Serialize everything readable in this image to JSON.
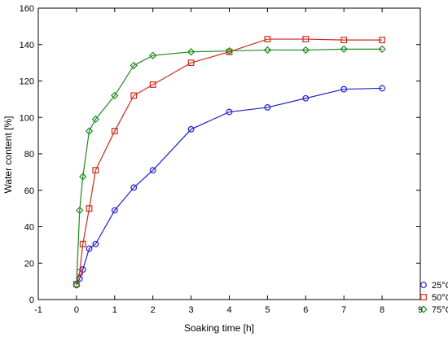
{
  "chart_data": {
    "type": "line",
    "title": "",
    "xlabel": "Soaking time [h]",
    "ylabel": "Water content [%]",
    "xlim": [
      -1,
      9
    ],
    "ylim": [
      0,
      160
    ],
    "xticks": [
      -1,
      0,
      1,
      2,
      3,
      4,
      5,
      6,
      7,
      8,
      9
    ],
    "yticks": [
      0,
      20,
      40,
      60,
      80,
      100,
      120,
      140,
      160
    ],
    "grid": false,
    "legend_position": "bottom-right",
    "series": [
      {
        "name": "25°C",
        "color": "#1f1fd0",
        "marker": "circle",
        "x": [
          0,
          0.083,
          0.167,
          0.333,
          0.5,
          1,
          1.5,
          2,
          3,
          4,
          5,
          6,
          7,
          8
        ],
        "y": [
          8,
          11.5,
          16.5,
          28,
          30.5,
          49,
          61.5,
          71,
          93.5,
          103,
          105.5,
          110.5,
          115.5,
          116
        ]
      },
      {
        "name": "50°C",
        "color": "#cc2a1a",
        "marker": "square",
        "x": [
          0,
          0.083,
          0.167,
          0.333,
          0.5,
          1,
          1.5,
          2,
          3,
          4,
          5,
          6,
          7,
          8
        ],
        "y": [
          8.5,
          15,
          30.5,
          50,
          71,
          92.5,
          112,
          118,
          130,
          136,
          143,
          143,
          142.5,
          142.5
        ]
      },
      {
        "name": "75°C",
        "color": "#1f8a1f",
        "marker": "diamond",
        "x": [
          0,
          0.083,
          0.167,
          0.333,
          0.5,
          1,
          1.5,
          2,
          3,
          4,
          5,
          6,
          7,
          8
        ],
        "y": [
          8,
          49,
          67.5,
          92.5,
          99,
          112,
          128.5,
          134,
          136,
          136.5,
          137,
          137,
          137.5,
          137.5
        ]
      }
    ]
  }
}
